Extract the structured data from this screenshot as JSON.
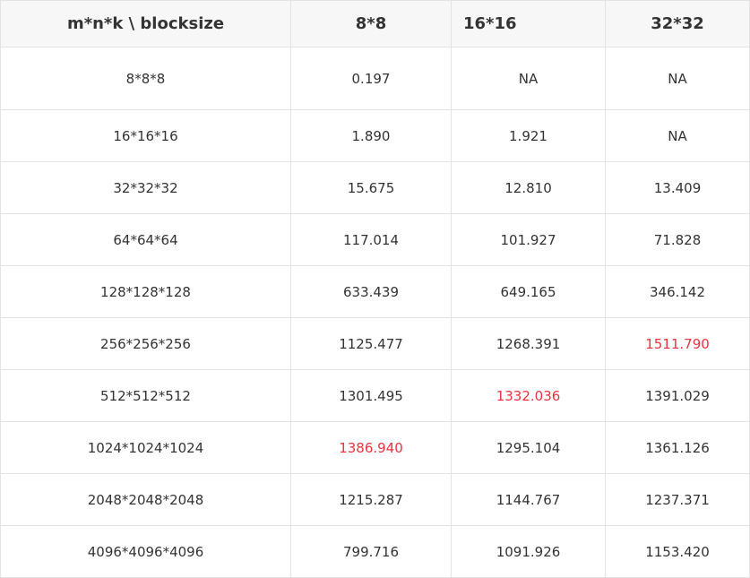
{
  "table": {
    "headers": [
      "m*n*k \\ blocksize",
      "8*8",
      "16*16",
      "32*32"
    ],
    "rows": [
      [
        "8*8*8",
        "0.197",
        "NA",
        "NA"
      ],
      [
        "16*16*16",
        "1.890",
        "1.921",
        "NA"
      ],
      [
        "32*32*32",
        "15.675",
        "12.810",
        "13.409"
      ],
      [
        "64*64*64",
        "117.014",
        "101.927",
        "71.828"
      ],
      [
        "128*128*128",
        "633.439",
        "649.165",
        "346.142"
      ],
      [
        "256*256*256",
        "1125.477",
        "1268.391",
        "1511.790"
      ],
      [
        "512*512*512",
        "1301.495",
        "1332.036",
        "1391.029"
      ],
      [
        "1024*1024*1024",
        "1386.940",
        "1295.104",
        "1361.126"
      ],
      [
        "2048*2048*2048",
        "1215.287",
        "1144.767",
        "1237.371"
      ],
      [
        "4096*4096*4096",
        "799.716",
        "1091.926",
        "1153.420"
      ]
    ],
    "highlight_color": "#e8343f",
    "highlighted_cells": [
      {
        "row": 5,
        "col": 3
      },
      {
        "row": 6,
        "col": 2
      },
      {
        "row": 7,
        "col": 1
      }
    ]
  }
}
